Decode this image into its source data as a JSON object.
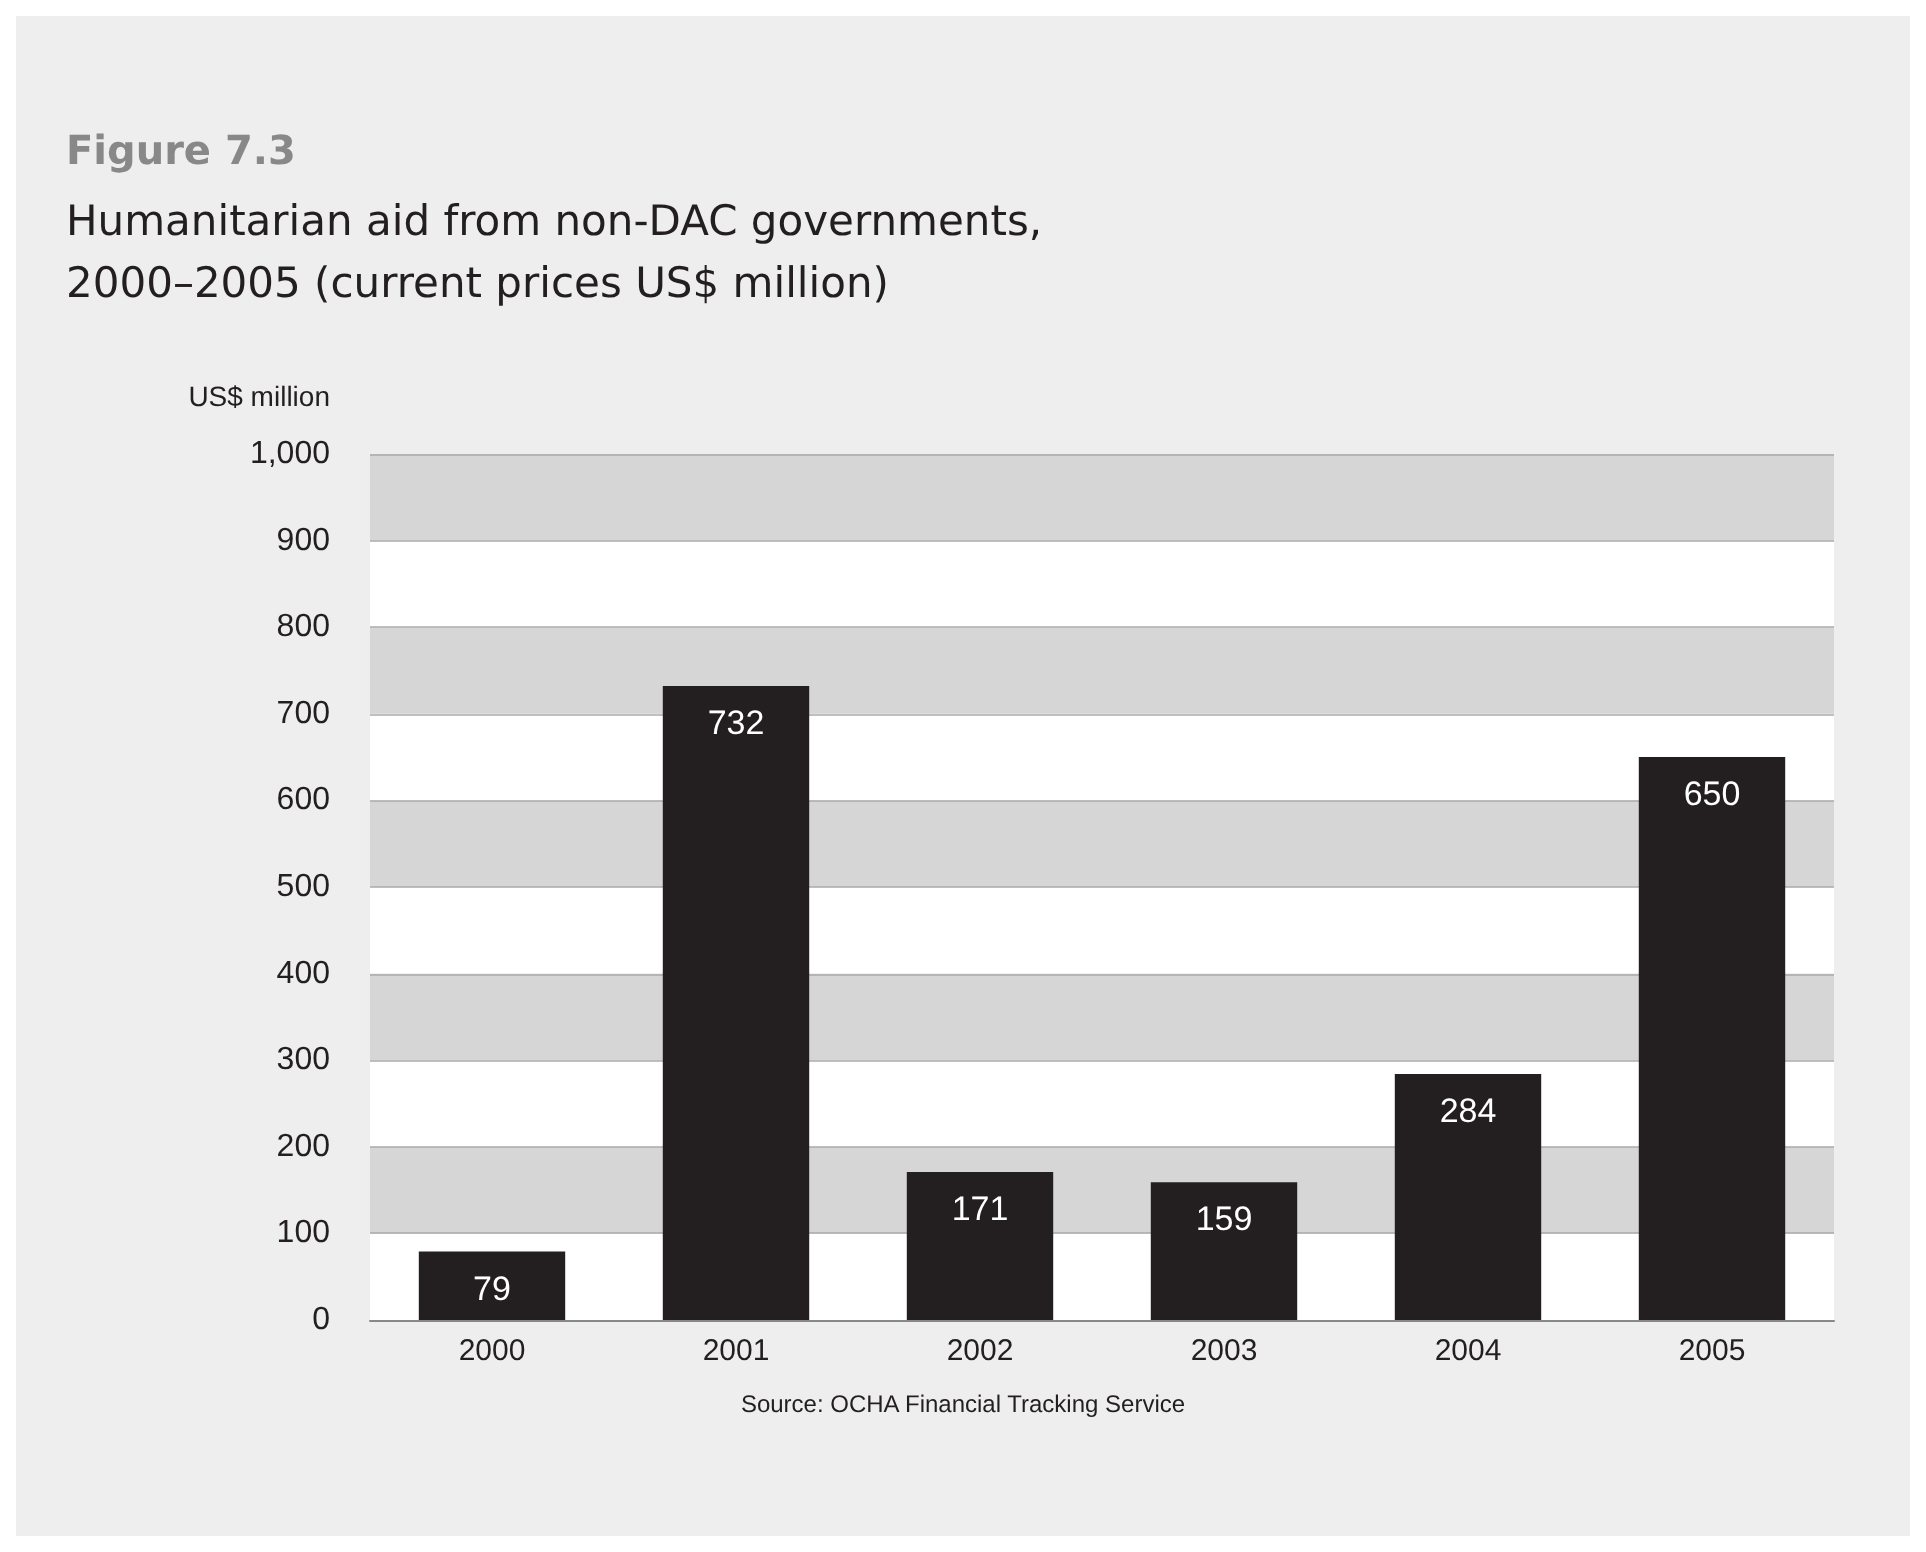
{
  "chart_data": {
    "type": "bar",
    "title": "Figure 7.3",
    "subtitle": "Humanitarian aid from non-DAC governments, 2000–2005 (current prices US$ million)",
    "ylabel": "US$ million",
    "categories": [
      "2000",
      "2001",
      "2002",
      "2003",
      "2004",
      "2005"
    ],
    "values": [
      79,
      732,
      171,
      159,
      284,
      650
    ],
    "color": "#231f20",
    "ylim": [
      0,
      1000
    ],
    "yticks": [
      0,
      100,
      200,
      300,
      400,
      500,
      600,
      700,
      800,
      900,
      {
        "value": 1000,
        "label": "1,000"
      }
    ],
    "grid": "y",
    "data_labels": true,
    "annotations": [
      "Source: OCHA Financial Tracking Service"
    ]
  }
}
